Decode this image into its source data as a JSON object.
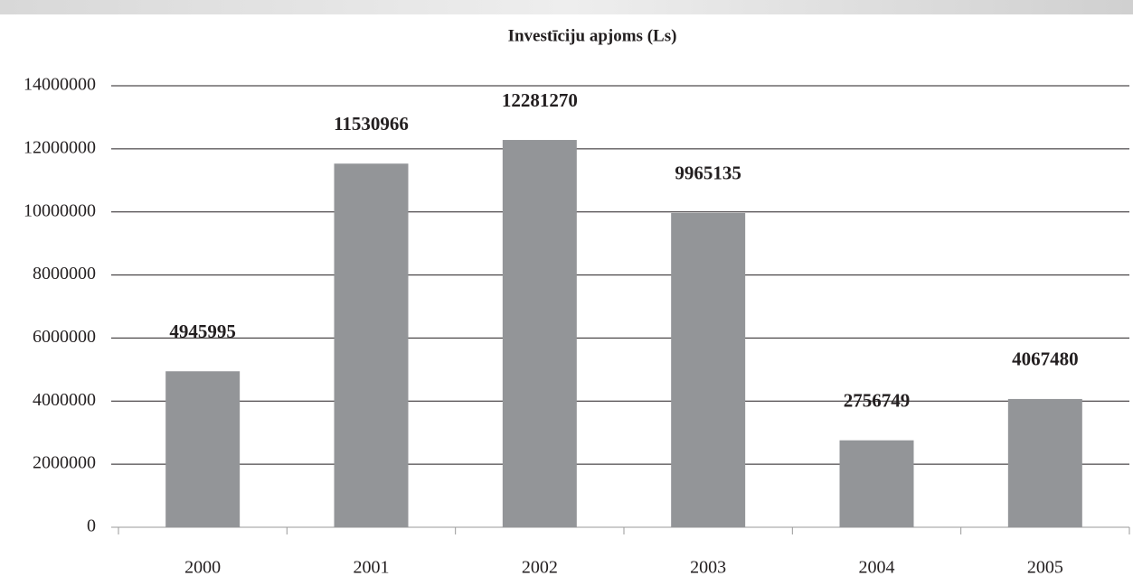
{
  "chart_data": {
    "type": "bar",
    "title": "Investīciju apjoms (Ls)",
    "categories": [
      "2000",
      "2001",
      "2002",
      "2003",
      "2004",
      "2005"
    ],
    "values": [
      4945995,
      11530966,
      12281270,
      9965135,
      2756749,
      4067480
    ],
    "color": "#939598",
    "ylim": [
      0,
      14000000
    ],
    "yticks": [
      0,
      2000000,
      4000000,
      6000000,
      8000000,
      10000000,
      12000000,
      14000000
    ],
    "grid": true
  }
}
